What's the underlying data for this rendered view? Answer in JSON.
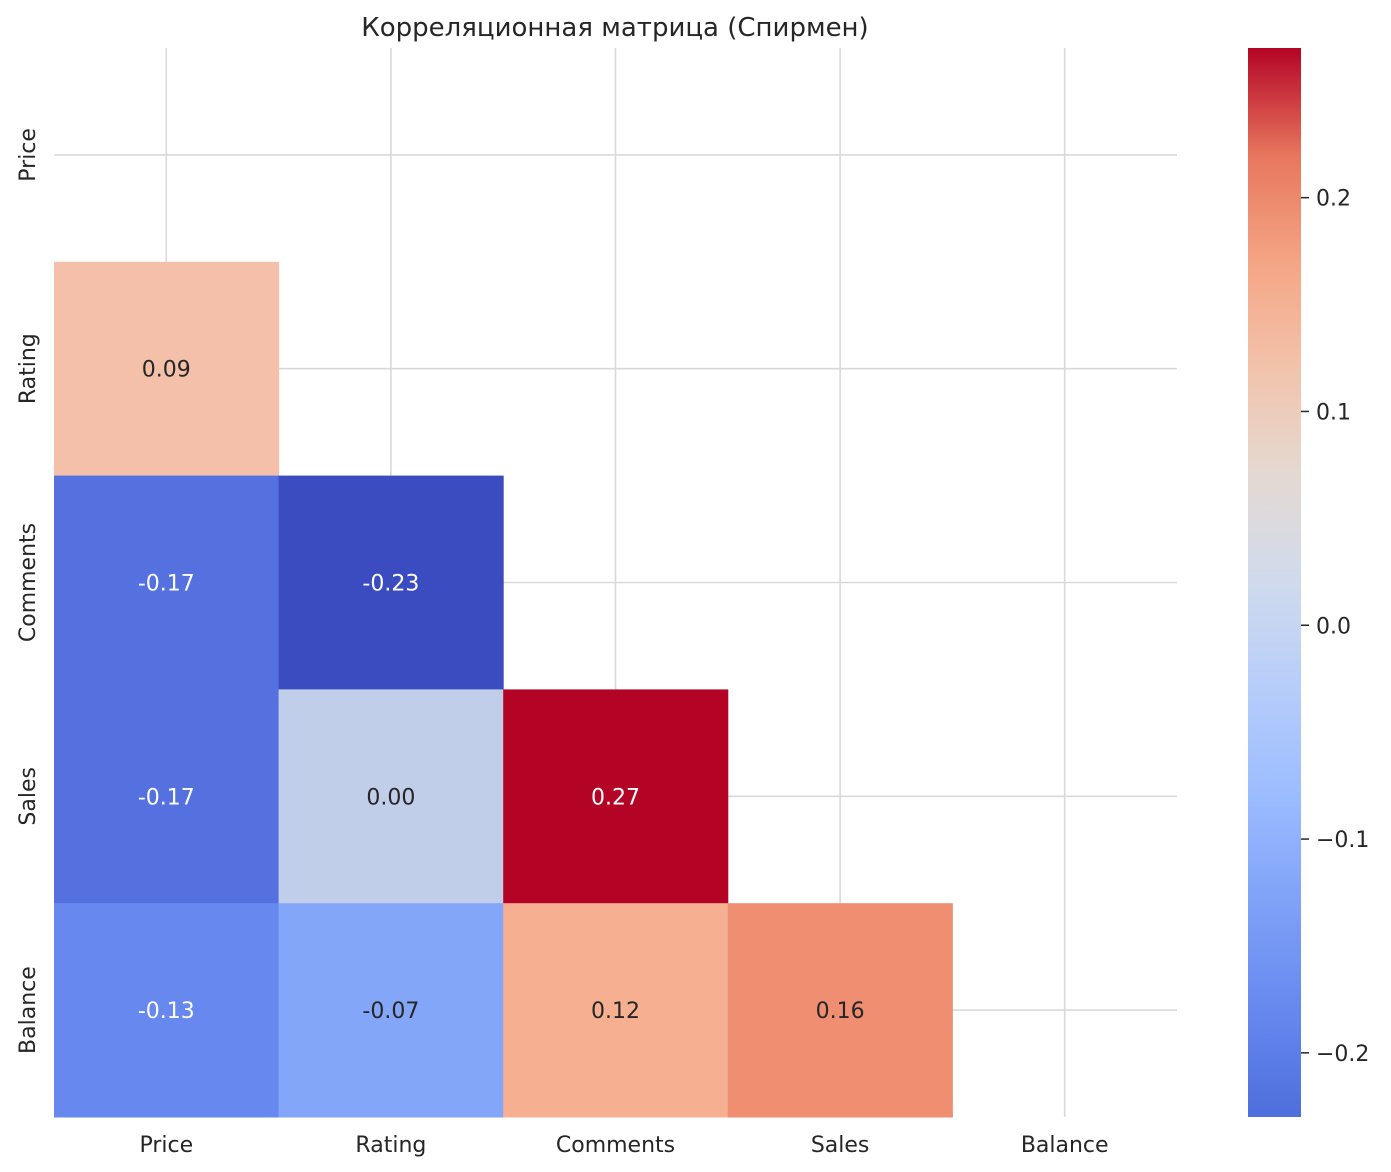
{
  "chart_data": {
    "type": "heatmap",
    "title": "Корреляционная матрица (Спирмен)",
    "variables": [
      "Price",
      "Rating",
      "Comments",
      "Sales",
      "Balance"
    ],
    "mask": "upper-triangle-including-diagonal",
    "matrix": [
      [
        null,
        null,
        null,
        null,
        null
      ],
      [
        0.09,
        null,
        null,
        null,
        null
      ],
      [
        -0.17,
        -0.23,
        null,
        null,
        null
      ],
      [
        -0.17,
        0.0,
        0.27,
        null,
        null
      ],
      [
        -0.13,
        -0.07,
        0.12,
        0.16,
        null
      ]
    ],
    "value_format": "2 decimals",
    "colormap": "coolwarm",
    "colorbar": {
      "range": [
        -0.23,
        0.27
      ],
      "ticks": [
        -0.2,
        -0.1,
        0.0,
        0.1,
        0.2
      ],
      "tick_labels": [
        "−0.2",
        "−0.1",
        "0.0",
        "0.1",
        "0.2"
      ]
    },
    "grid": true
  }
}
